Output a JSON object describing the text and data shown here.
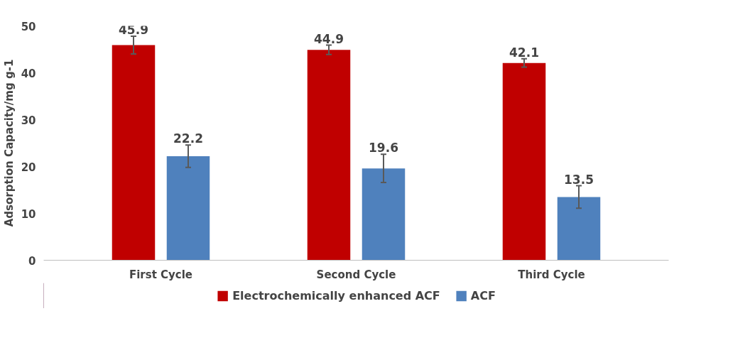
{
  "chart_data": {
    "type": "bar",
    "ylabel": "Adsorption Capacity/mg g-1",
    "categories": [
      "First Cycle",
      "Second Cycle",
      "Third Cycle"
    ],
    "series": [
      {
        "name": "Electrochemically enhanced ACF",
        "color": "#c00000",
        "values": [
          45.9,
          44.9,
          42.1
        ],
        "errors": [
          1.9,
          1.0,
          0.9
        ]
      },
      {
        "name": "ACF",
        "color": "#4f81bd",
        "values": [
          22.2,
          19.6,
          13.5
        ],
        "errors": [
          2.4,
          3.0,
          2.4
        ]
      }
    ],
    "ylim": [
      0,
      50
    ],
    "yticks": [
      0,
      10,
      20,
      30,
      40,
      50
    ],
    "data_labels": true,
    "grid": false,
    "legend": "bottom"
  }
}
